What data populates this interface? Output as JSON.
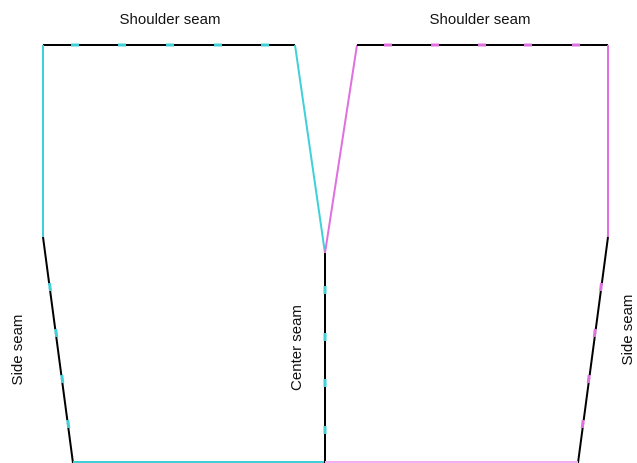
{
  "labels": {
    "left_shoulder": "Shoulder seam",
    "right_shoulder": "Shoulder seam",
    "left_side": "Side seam",
    "center": "Center seam",
    "right_side": "Side seam"
  }
}
